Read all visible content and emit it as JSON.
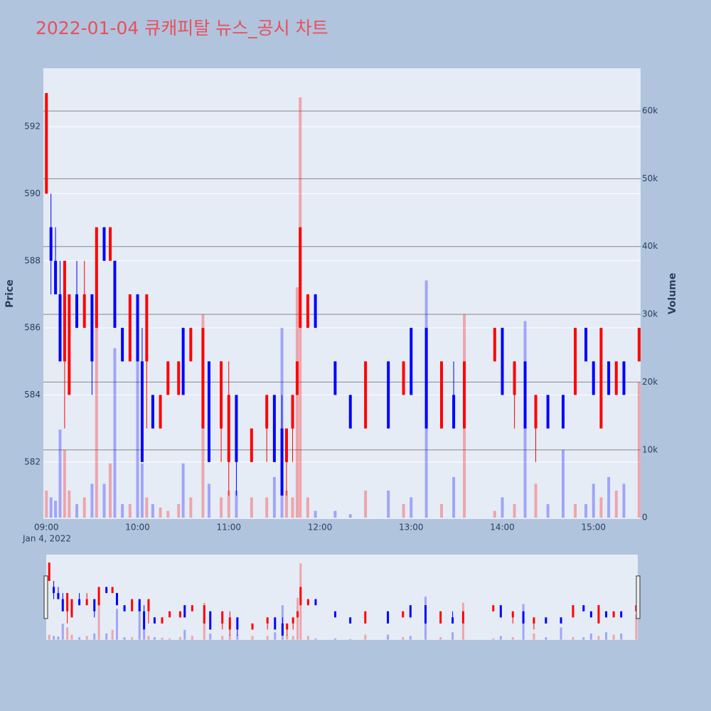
{
  "chart_data": {
    "type": "candlestick",
    "title": "2022-01-04 큐캐피탈 뉴스_공시 차트",
    "y_label": "Price",
    "y2_label": "Volume",
    "x_date_label": "Jan 4, 2022",
    "increasing_color": "#ff0000",
    "decreasing_color": "#0000ff",
    "x": [
      "2022-01-04 09:00",
      "2022-01-04 09:03",
      "2022-01-04 09:06",
      "2022-01-04 09:09",
      "2022-01-04 09:12",
      "2022-01-04 09:15",
      "2022-01-04 09:20",
      "2022-01-04 09:25",
      "2022-01-04 09:30",
      "2022-01-04 09:33",
      "2022-01-04 09:38",
      "2022-01-04 09:42",
      "2022-01-04 09:45",
      "2022-01-04 09:50",
      "2022-01-04 09:55",
      "2022-01-04 10:00",
      "2022-01-04 10:03",
      "2022-01-04 10:06",
      "2022-01-04 10:10",
      "2022-01-04 10:15",
      "2022-01-04 10:20",
      "2022-01-04 10:27",
      "2022-01-04 10:30",
      "2022-01-04 10:35",
      "2022-01-04 10:43",
      "2022-01-04 10:47",
      "2022-01-04 10:55",
      "2022-01-04 11:00",
      "2022-01-04 11:05",
      "2022-01-04 11:15",
      "2022-01-04 11:25",
      "2022-01-04 11:30",
      "2022-01-04 11:35",
      "2022-01-04 11:38",
      "2022-01-04 11:42",
      "2022-01-04 11:45",
      "2022-01-04 11:47",
      "2022-01-04 11:52",
      "2022-01-04 11:57",
      "2022-01-04 12:10",
      "2022-01-04 12:20",
      "2022-01-04 12:30",
      "2022-01-04 12:45",
      "2022-01-04 12:55",
      "2022-01-04 13:00",
      "2022-01-04 13:10",
      "2022-01-04 13:20",
      "2022-01-04 13:28",
      "2022-01-04 13:35",
      "2022-01-04 13:55",
      "2022-01-04 14:00",
      "2022-01-04 14:08",
      "2022-01-04 14:15",
      "2022-01-04 14:22",
      "2022-01-04 14:30",
      "2022-01-04 14:40",
      "2022-01-04 14:48",
      "2022-01-04 14:55",
      "2022-01-04 15:00",
      "2022-01-04 15:05",
      "2022-01-04 15:10",
      "2022-01-04 15:15",
      "2022-01-04 15:20",
      "2022-01-04 15:30"
    ],
    "open": [
      590,
      589,
      588,
      587,
      585,
      584,
      587,
      586,
      587,
      586,
      589,
      588,
      588,
      586,
      585,
      587,
      585,
      585,
      584,
      583,
      584,
      584,
      586,
      585,
      583,
      585,
      583,
      582,
      584,
      582,
      583,
      584,
      583,
      582,
      583,
      584,
      586,
      586,
      587,
      585,
      584,
      583,
      585,
      584,
      586,
      586,
      583,
      584,
      583,
      585,
      586,
      584,
      585,
      583,
      584,
      584,
      584,
      586,
      585,
      583,
      585,
      584,
      585,
      585
    ],
    "high": [
      593,
      590,
      589,
      588,
      588,
      587,
      588,
      588,
      587,
      589,
      589,
      589,
      588,
      586,
      587,
      587,
      586,
      587,
      584,
      584,
      585,
      585,
      586,
      586,
      586,
      585,
      585,
      585,
      584,
      583,
      584,
      584,
      584,
      583,
      584,
      585,
      589,
      587,
      587,
      585,
      584,
      585,
      585,
      585,
      586,
      586,
      585,
      585,
      585,
      586,
      586,
      585,
      585,
      584,
      584,
      584,
      586,
      586,
      585,
      586,
      585,
      585,
      585,
      586
    ],
    "low": [
      590,
      587,
      587,
      585,
      583,
      584,
      586,
      586,
      584,
      586,
      588,
      588,
      586,
      585,
      585,
      585,
      582,
      583,
      583,
      583,
      584,
      584,
      584,
      585,
      583,
      582,
      582,
      581,
      581,
      582,
      582,
      582,
      581,
      581,
      582,
      584,
      586,
      586,
      586,
      584,
      583,
      583,
      583,
      584,
      584,
      583,
      583,
      583,
      583,
      585,
      584,
      583,
      583,
      582,
      583,
      583,
      584,
      585,
      584,
      583,
      584,
      584,
      584,
      585
    ],
    "close": [
      593,
      588,
      587,
      585,
      588,
      587,
      586,
      587,
      585,
      589,
      588,
      589,
      586,
      585,
      587,
      585,
      582,
      587,
      583,
      584,
      585,
      585,
      584,
      586,
      586,
      582,
      585,
      584,
      582,
      583,
      584,
      582,
      581,
      583,
      584,
      585,
      589,
      587,
      586,
      584,
      583,
      585,
      583,
      585,
      584,
      583,
      585,
      583,
      585,
      586,
      584,
      585,
      583,
      584,
      583,
      583,
      586,
      585,
      584,
      586,
      584,
      585,
      584,
      586
    ],
    "volume": [
      4000,
      3000,
      2500,
      13000,
      10000,
      4000,
      2000,
      3000,
      5000,
      30000,
      5000,
      8000,
      25000,
      2000,
      2000,
      30000,
      8000,
      3000,
      2000,
      1500,
      1000,
      2000,
      8000,
      3000,
      30000,
      5000,
      3000,
      4000,
      4000,
      3000,
      3000,
      6000,
      28000,
      4000,
      3000,
      34000,
      62000,
      3000,
      1000,
      1000,
      500,
      4000,
      4000,
      2000,
      3000,
      35000,
      2000,
      6000,
      30000,
      1000,
      3000,
      2000,
      29000,
      5000,
      2000,
      10000,
      2000,
      2000,
      5000,
      3000,
      6000,
      4000,
      5000,
      20000
    ],
    "xlim": [
      "2022-01-04 08:58",
      "2022-01-04 15:31"
    ],
    "xticks": [
      {
        "value": "2022-01-04 09:00",
        "label": "09:00"
      },
      {
        "value": "2022-01-04 10:00",
        "label": "10:00"
      },
      {
        "value": "2022-01-04 11:00",
        "label": "11:00"
      },
      {
        "value": "2022-01-04 12:00",
        "label": "12:00"
      },
      {
        "value": "2022-01-04 13:00",
        "label": "13:00"
      },
      {
        "value": "2022-01-04 14:00",
        "label": "14:00"
      },
      {
        "value": "2022-01-04 15:00",
        "label": "15:00"
      }
    ],
    "ylim": [
      580.3,
      593.74
    ],
    "yticks": [
      582,
      584,
      586,
      588,
      590,
      592
    ],
    "y2lim": [
      -200,
      66300
    ],
    "y2ticks": [
      0,
      {
        "value": 10000,
        "label": "10k"
      },
      {
        "value": 20000,
        "label": "20k"
      },
      {
        "value": 30000,
        "label": "30k"
      },
      {
        "value": 40000,
        "label": "40k"
      },
      {
        "value": 50000,
        "label": "50k"
      },
      {
        "value": 60000,
        "label": "60k"
      }
    ],
    "grid": true
  }
}
